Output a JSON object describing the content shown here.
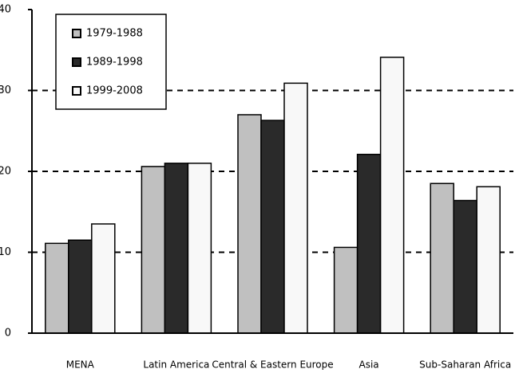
{
  "chart_data": {
    "type": "bar",
    "categories": [
      "MENA",
      "Latin America",
      "Central & Eastern Europe",
      "Asia",
      "Sub-Saharan Africa"
    ],
    "series": [
      {
        "name": "1979-1988",
        "color": "#c0c0c0",
        "values": [
          11.1,
          20.6,
          27.0,
          10.6,
          18.5
        ]
      },
      {
        "name": "1989-1998",
        "color": "#2a2a2a",
        "values": [
          11.5,
          21.0,
          26.3,
          22.1,
          16.4
        ]
      },
      {
        "name": "1999-2008",
        "color": "#f8f8f8",
        "values": [
          13.5,
          21.0,
          30.9,
          34.1,
          18.1
        ]
      }
    ],
    "ylim": [
      0,
      40
    ],
    "yticks": [
      0,
      10,
      20,
      30,
      40
    ],
    "grid": true
  }
}
